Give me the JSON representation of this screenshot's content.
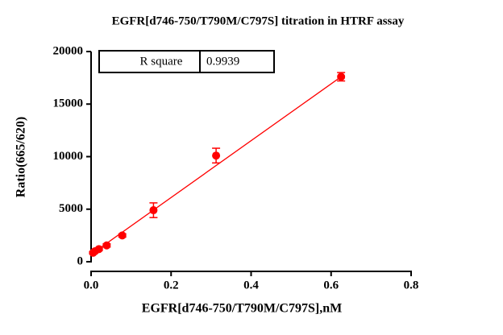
{
  "chart_data": {
    "type": "scatter",
    "title": "EGFR[d746-750/T790M/C797S] titration in HTRF assay",
    "x_label": "EGFR[d746-750/T790M/C797S],nM",
    "y_label": "Ratio(665/620)",
    "points": {
      "color": "#ff0000",
      "x": [
        0.0049,
        0.0098,
        0.0195,
        0.039,
        0.078,
        0.156,
        0.3125,
        0.625
      ],
      "values": [
        850,
        1000,
        1200,
        1550,
        2500,
        4900,
        10100,
        17600
      ],
      "errors": [
        100,
        100,
        120,
        150,
        150,
        700,
        700,
        400
      ]
    },
    "fit_line": {
      "color": "#ff0000",
      "x": [
        0,
        0.625
      ],
      "values": [
        700,
        17600
      ]
    },
    "r_square_table": [
      "R square",
      "0.9939"
    ],
    "xlim": [
      0,
      0.8
    ],
    "xticks": [
      {
        "value": 0,
        "label": "0.0"
      },
      0.2,
      0.4,
      0.6,
      0.8
    ],
    "ylim": [
      0,
      20000
    ],
    "yticks": [
      0,
      5000,
      10000,
      15000,
      20000
    ],
    "grid": false
  }
}
